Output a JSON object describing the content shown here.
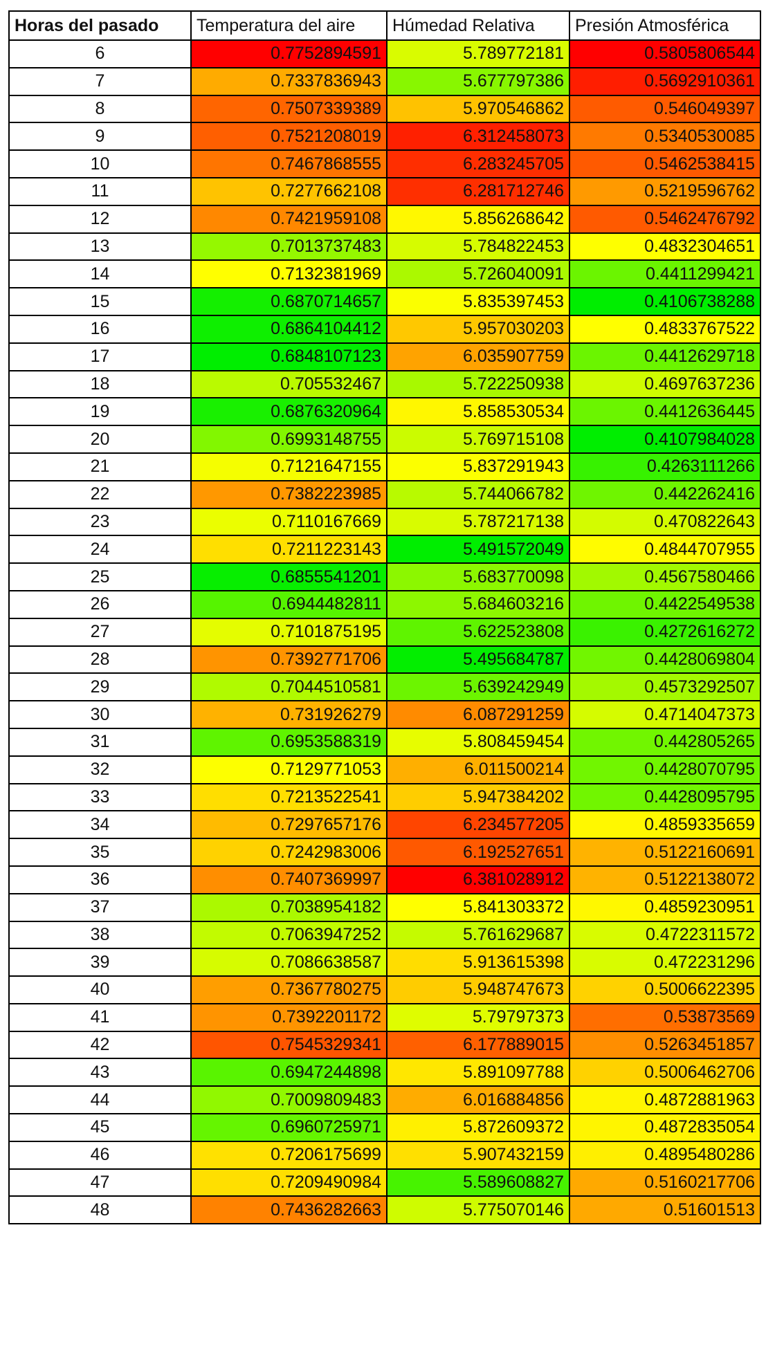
{
  "table": {
    "headers": [
      "Horas del pasado",
      "Temperatura del aire",
      "Húmedad Relativa",
      "Presión Atmosférica"
    ],
    "color_scale": {
      "low": "#00ee00",
      "mid": "#ffff00",
      "high": "#ff0000"
    },
    "rows": [
      {
        "hour": "6",
        "values": [
          "0.7752894591",
          "5.789772181",
          "0.5805806544"
        ]
      },
      {
        "hour": "7",
        "values": [
          "0.7337836943",
          "5.677797386",
          "0.5692910361"
        ]
      },
      {
        "hour": "8",
        "values": [
          "0.7507339389",
          "5.970546862",
          "0.546049397"
        ]
      },
      {
        "hour": "9",
        "values": [
          "0.7521208019",
          "6.312458073",
          "0.5340530085"
        ]
      },
      {
        "hour": "10",
        "values": [
          "0.7467868555",
          "6.283245705",
          "0.5462538415"
        ]
      },
      {
        "hour": "11",
        "values": [
          "0.7277662108",
          "6.281712746",
          "0.5219596762"
        ]
      },
      {
        "hour": "12",
        "values": [
          "0.7421959108",
          "5.856268642",
          "0.5462476792"
        ]
      },
      {
        "hour": "13",
        "values": [
          "0.7013737483",
          "5.784822453",
          "0.4832304651"
        ]
      },
      {
        "hour": "14",
        "values": [
          "0.7132381969",
          "5.726040091",
          "0.4411299421"
        ]
      },
      {
        "hour": "15",
        "values": [
          "0.6870714657",
          "5.835397453",
          "0.4106738288"
        ]
      },
      {
        "hour": "16",
        "values": [
          "0.6864104412",
          "5.957030203",
          "0.4833767522"
        ]
      },
      {
        "hour": "17",
        "values": [
          "0.6848107123",
          "6.035907759",
          "0.4412629718"
        ]
      },
      {
        "hour": "18",
        "values": [
          "0.705532467",
          "5.722250938",
          "0.4697637236"
        ]
      },
      {
        "hour": "19",
        "values": [
          "0.6876320964",
          "5.858530534",
          "0.4412636445"
        ]
      },
      {
        "hour": "20",
        "values": [
          "0.6993148755",
          "5.769715108",
          "0.4107984028"
        ]
      },
      {
        "hour": "21",
        "values": [
          "0.7121647155",
          "5.837291943",
          "0.4263111266"
        ]
      },
      {
        "hour": "22",
        "values": [
          "0.7382223985",
          "5.744066782",
          "0.442262416"
        ]
      },
      {
        "hour": "23",
        "values": [
          "0.7110167669",
          "5.787217138",
          "0.470822643"
        ]
      },
      {
        "hour": "24",
        "values": [
          "0.7211223143",
          "5.491572049",
          "0.4844707955"
        ]
      },
      {
        "hour": "25",
        "values": [
          "0.6855541201",
          "5.683770098",
          "0.4567580466"
        ]
      },
      {
        "hour": "26",
        "values": [
          "0.6944482811",
          "5.684603216",
          "0.4422549538"
        ]
      },
      {
        "hour": "27",
        "values": [
          "0.7101875195",
          "5.622523808",
          "0.4272616272"
        ]
      },
      {
        "hour": "28",
        "values": [
          "0.7392771706",
          "5.495684787",
          "0.4428069804"
        ]
      },
      {
        "hour": "29",
        "values": [
          "0.7044510581",
          "5.639242949",
          "0.4573292507"
        ]
      },
      {
        "hour": "30",
        "values": [
          "0.731926279",
          "6.087291259",
          "0.4714047373"
        ]
      },
      {
        "hour": "31",
        "values": [
          "0.6953588319",
          "5.808459454",
          "0.442805265"
        ]
      },
      {
        "hour": "32",
        "values": [
          "0.7129771053",
          "6.011500214",
          "0.4428070795"
        ]
      },
      {
        "hour": "33",
        "values": [
          "0.7213522541",
          "5.947384202",
          "0.4428095795"
        ]
      },
      {
        "hour": "34",
        "values": [
          "0.7297657176",
          "6.234577205",
          "0.4859335659"
        ]
      },
      {
        "hour": "35",
        "values": [
          "0.7242983006",
          "6.192527651",
          "0.5122160691"
        ]
      },
      {
        "hour": "36",
        "values": [
          "0.7407369997",
          "6.381028912",
          "0.5122138072"
        ]
      },
      {
        "hour": "37",
        "values": [
          "0.7038954182",
          "5.841303372",
          "0.4859230951"
        ]
      },
      {
        "hour": "38",
        "values": [
          "0.7063947252",
          "5.761629687",
          "0.4722311572"
        ]
      },
      {
        "hour": "39",
        "values": [
          "0.7086638587",
          "5.913615398",
          "0.472231296"
        ]
      },
      {
        "hour": "40",
        "values": [
          "0.7367780275",
          "5.948747673",
          "0.5006622395"
        ]
      },
      {
        "hour": "41",
        "values": [
          "0.7392201172",
          "5.79797373",
          "0.53873569"
        ]
      },
      {
        "hour": "42",
        "values": [
          "0.7545329341",
          "6.177889015",
          "0.5263451857"
        ]
      },
      {
        "hour": "43",
        "values": [
          "0.6947244898",
          "5.891097788",
          "0.5006462706"
        ]
      },
      {
        "hour": "44",
        "values": [
          "0.7009809483",
          "6.016884856",
          "0.4872881963"
        ]
      },
      {
        "hour": "45",
        "values": [
          "0.6960725971",
          "5.872609372",
          "0.4872835054"
        ]
      },
      {
        "hour": "46",
        "values": [
          "0.7206175699",
          "5.907432159",
          "0.4895480286"
        ]
      },
      {
        "hour": "47",
        "values": [
          "0.7209490984",
          "5.589608827",
          "0.5160217706"
        ]
      },
      {
        "hour": "48",
        "values": [
          "0.7436282663",
          "5.775070146",
          "0.51601513"
        ]
      }
    ]
  }
}
